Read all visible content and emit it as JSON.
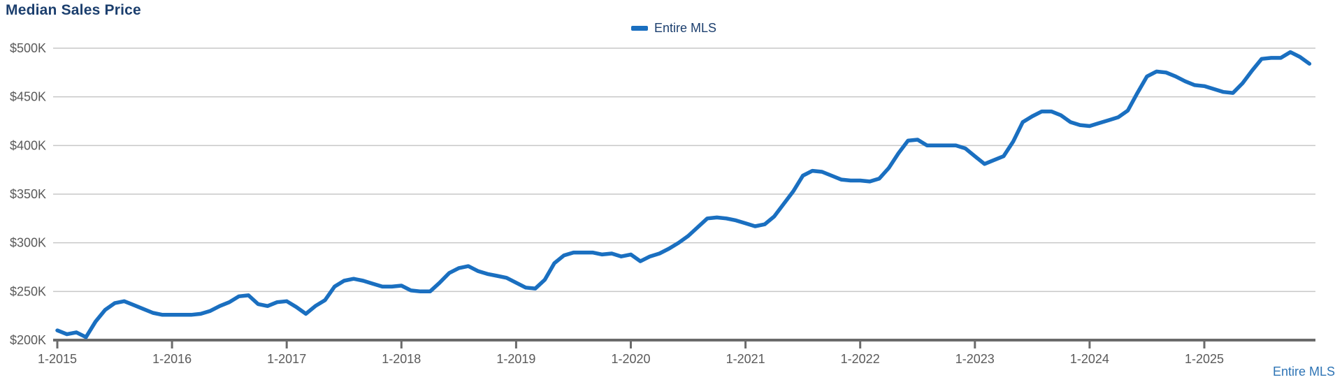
{
  "title": "Median Sales Price",
  "legend": {
    "items": [
      {
        "label": "Entire MLS",
        "color": "#1a6fc0"
      }
    ]
  },
  "footer_link": "Entire MLS",
  "colors": {
    "title": "#1c3f6e",
    "legend_text": "#1c3f6e",
    "axis_text": "#5a5a5a",
    "gridline": "#c7c7c7",
    "axis_line": "#6b6b6b",
    "series": "#1a6fc0",
    "footer_link": "#2e74b5",
    "background": "#ffffff"
  },
  "chart_data": {
    "type": "line",
    "title": "Median Sales Price",
    "frequency": "monthly",
    "x_start": "1-2015",
    "x_end": "12-2025",
    "x_tick_labels": [
      "1-2015",
      "1-2016",
      "1-2017",
      "1-2018",
      "1-2019",
      "1-2020",
      "1-2021",
      "1-2022",
      "1-2023",
      "1-2024",
      "1-2025"
    ],
    "y_tick_labels": [
      "$200K",
      "$250K",
      "$300K",
      "$350K",
      "$400K",
      "$450K",
      "$500K"
    ],
    "y_unit": "USD thousands",
    "ylim": [
      200,
      500
    ],
    "grid": "horizontal",
    "legend_position": "top-center",
    "series": [
      {
        "name": "Entire MLS",
        "color": "#1a6fc0",
        "values_k": [
          210,
          206,
          208,
          203,
          219,
          231,
          238,
          240,
          236,
          232,
          228,
          226,
          226,
          226,
          226,
          227,
          230,
          235,
          239,
          245,
          246,
          237,
          235,
          239,
          240,
          234,
          227,
          235,
          241,
          255,
          261,
          263,
          261,
          258,
          255,
          255,
          256,
          251,
          250,
          250,
          259,
          269,
          274,
          276,
          271,
          268,
          266,
          264,
          259,
          254,
          253,
          262,
          279,
          287,
          290,
          290,
          290,
          288,
          289,
          286,
          288,
          281,
          286,
          289,
          294,
          300,
          307,
          316,
          325,
          326,
          325,
          323,
          320,
          317,
          319,
          327,
          340,
          353,
          369,
          374,
          373,
          369,
          365,
          364,
          364,
          363,
          366,
          377,
          392,
          405,
          406,
          400,
          400,
          400,
          400,
          397,
          389,
          381,
          385,
          389,
          404,
          424,
          430,
          435,
          435,
          431,
          424,
          421,
          420,
          423,
          426,
          429,
          436,
          454,
          471,
          476,
          475,
          471,
          466,
          462,
          461,
          458,
          455,
          454,
          464,
          477,
          489,
          490,
          490,
          496,
          491,
          484
        ]
      }
    ]
  }
}
